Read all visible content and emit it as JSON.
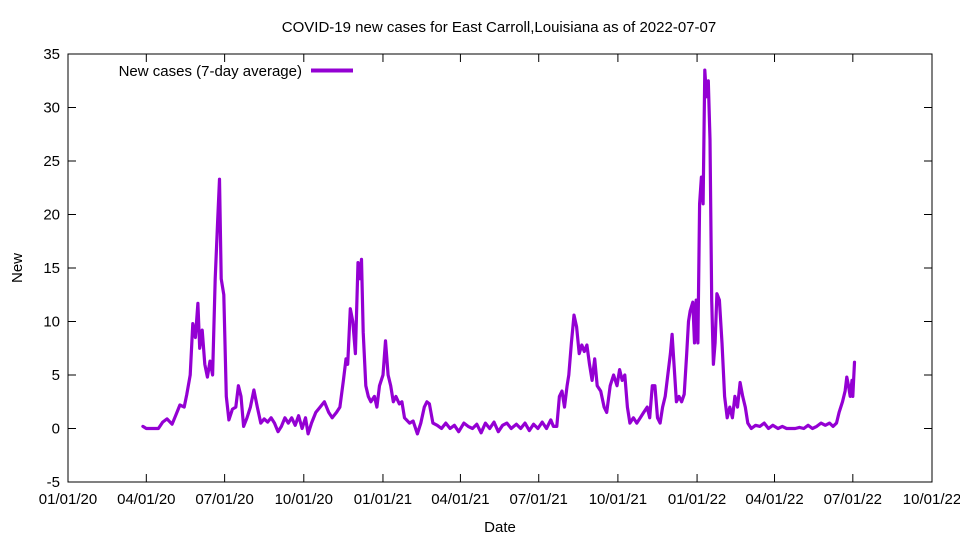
{
  "chart_data": {
    "type": "line",
    "title": "COVID-19 new cases for East Carroll,Louisiana as of 2022-07-07",
    "xlabel": "Date",
    "ylabel": "New",
    "x_range": [
      "2020-01-01",
      "2022-10-01"
    ],
    "ylim": [
      -5,
      35
    ],
    "y_ticks": [
      -5,
      0,
      5,
      10,
      15,
      20,
      25,
      30,
      35
    ],
    "x_ticks": [
      {
        "date": "2020-01-01",
        "label": "01/01/20"
      },
      {
        "date": "2020-04-01",
        "label": "04/01/20"
      },
      {
        "date": "2020-07-01",
        "label": "07/01/20"
      },
      {
        "date": "2020-10-01",
        "label": "10/01/20"
      },
      {
        "date": "2021-01-01",
        "label": "01/01/21"
      },
      {
        "date": "2021-04-01",
        "label": "04/01/21"
      },
      {
        "date": "2021-07-01",
        "label": "07/01/21"
      },
      {
        "date": "2021-10-01",
        "label": "10/01/21"
      },
      {
        "date": "2022-01-01",
        "label": "01/01/22"
      },
      {
        "date": "2022-04-01",
        "label": "04/01/22"
      },
      {
        "date": "2022-07-01",
        "label": "07/01/22"
      },
      {
        "date": "2022-10-01",
        "label": "10/01/22"
      }
    ],
    "legend_position": "top-left",
    "series": [
      {
        "name": "New cases (7-day average)",
        "color": "#9400d3",
        "points": [
          [
            "2020-03-28",
            0.2
          ],
          [
            "2020-04-01",
            0.0
          ],
          [
            "2020-04-15",
            0.0
          ],
          [
            "2020-04-20",
            0.6
          ],
          [
            "2020-04-25",
            0.9
          ],
          [
            "2020-05-01",
            0.4
          ],
          [
            "2020-05-05",
            1.2
          ],
          [
            "2020-05-10",
            2.2
          ],
          [
            "2020-05-15",
            2.0
          ],
          [
            "2020-05-18",
            3.2
          ],
          [
            "2020-05-22",
            5.0
          ],
          [
            "2020-05-25",
            9.8
          ],
          [
            "2020-05-28",
            8.5
          ],
          [
            "2020-05-31",
            11.7
          ],
          [
            "2020-06-02",
            7.5
          ],
          [
            "2020-06-05",
            9.2
          ],
          [
            "2020-06-08",
            6.0
          ],
          [
            "2020-06-11",
            4.8
          ],
          [
            "2020-06-14",
            6.3
          ],
          [
            "2020-06-17",
            5.0
          ],
          [
            "2020-06-20",
            14.0
          ],
          [
            "2020-06-23",
            19.5
          ],
          [
            "2020-06-25",
            23.3
          ],
          [
            "2020-06-27",
            14.0
          ],
          [
            "2020-06-30",
            12.5
          ],
          [
            "2020-07-03",
            3.0
          ],
          [
            "2020-07-06",
            0.8
          ],
          [
            "2020-07-10",
            1.8
          ],
          [
            "2020-07-14",
            2.0
          ],
          [
            "2020-07-17",
            4.0
          ],
          [
            "2020-07-20",
            3.0
          ],
          [
            "2020-07-23",
            0.2
          ],
          [
            "2020-07-27",
            1.0
          ],
          [
            "2020-07-31",
            2.0
          ],
          [
            "2020-08-04",
            3.6
          ],
          [
            "2020-08-08",
            2.0
          ],
          [
            "2020-08-12",
            0.5
          ],
          [
            "2020-08-16",
            0.9
          ],
          [
            "2020-08-20",
            0.6
          ],
          [
            "2020-08-24",
            1.0
          ],
          [
            "2020-08-28",
            0.5
          ],
          [
            "2020-09-01",
            -0.3
          ],
          [
            "2020-09-05",
            0.2
          ],
          [
            "2020-09-09",
            1.0
          ],
          [
            "2020-09-13",
            0.5
          ],
          [
            "2020-09-17",
            1.0
          ],
          [
            "2020-09-21",
            0.3
          ],
          [
            "2020-09-25",
            1.2
          ],
          [
            "2020-09-29",
            0.0
          ],
          [
            "2020-10-03",
            1.0
          ],
          [
            "2020-10-06",
            -0.5
          ],
          [
            "2020-10-10",
            0.5
          ],
          [
            "2020-10-15",
            1.5
          ],
          [
            "2020-10-20",
            2.0
          ],
          [
            "2020-10-25",
            2.5
          ],
          [
            "2020-10-30",
            1.5
          ],
          [
            "2020-11-03",
            1.0
          ],
          [
            "2020-11-08",
            1.5
          ],
          [
            "2020-11-12",
            2.0
          ],
          [
            "2020-11-16",
            4.5
          ],
          [
            "2020-11-19",
            6.5
          ],
          [
            "2020-11-21",
            6.0
          ],
          [
            "2020-11-24",
            11.2
          ],
          [
            "2020-11-27",
            10.0
          ],
          [
            "2020-11-30",
            7.0
          ],
          [
            "2020-12-03",
            15.5
          ],
          [
            "2020-12-05",
            14.0
          ],
          [
            "2020-12-07",
            15.8
          ],
          [
            "2020-12-09",
            9.0
          ],
          [
            "2020-12-12",
            4.0
          ],
          [
            "2020-12-15",
            3.0
          ],
          [
            "2020-12-18",
            2.5
          ],
          [
            "2020-12-22",
            3.0
          ],
          [
            "2020-12-25",
            2.0
          ],
          [
            "2020-12-28",
            4.0
          ],
          [
            "2021-01-01",
            5.0
          ],
          [
            "2021-01-04",
            8.2
          ],
          [
            "2021-01-07",
            5.0
          ],
          [
            "2021-01-10",
            4.0
          ],
          [
            "2021-01-13",
            2.5
          ],
          [
            "2021-01-16",
            3.0
          ],
          [
            "2021-01-20",
            2.3
          ],
          [
            "2021-01-23",
            2.5
          ],
          [
            "2021-01-26",
            1.0
          ],
          [
            "2021-02-01",
            0.5
          ],
          [
            "2021-02-05",
            0.7
          ],
          [
            "2021-02-10",
            -0.5
          ],
          [
            "2021-02-14",
            0.5
          ],
          [
            "2021-02-18",
            2.0
          ],
          [
            "2021-02-21",
            2.5
          ],
          [
            "2021-02-24",
            2.3
          ],
          [
            "2021-02-28",
            0.5
          ],
          [
            "2021-03-05",
            0.3
          ],
          [
            "2021-03-10",
            0.0
          ],
          [
            "2021-03-15",
            0.5
          ],
          [
            "2021-03-20",
            0.0
          ],
          [
            "2021-03-25",
            0.3
          ],
          [
            "2021-03-30",
            -0.3
          ],
          [
            "2021-04-05",
            0.5
          ],
          [
            "2021-04-10",
            0.2
          ],
          [
            "2021-04-15",
            0.0
          ],
          [
            "2021-04-20",
            0.4
          ],
          [
            "2021-04-25",
            -0.4
          ],
          [
            "2021-04-30",
            0.5
          ],
          [
            "2021-05-05",
            0.0
          ],
          [
            "2021-05-10",
            0.6
          ],
          [
            "2021-05-15",
            -0.3
          ],
          [
            "2021-05-20",
            0.3
          ],
          [
            "2021-05-25",
            0.5
          ],
          [
            "2021-05-30",
            0.0
          ],
          [
            "2021-06-05",
            0.4
          ],
          [
            "2021-06-10",
            0.0
          ],
          [
            "2021-06-15",
            0.5
          ],
          [
            "2021-06-20",
            -0.2
          ],
          [
            "2021-06-25",
            0.4
          ],
          [
            "2021-06-30",
            0.0
          ],
          [
            "2021-07-05",
            0.6
          ],
          [
            "2021-07-10",
            0.0
          ],
          [
            "2021-07-15",
            0.8
          ],
          [
            "2021-07-18",
            0.2
          ],
          [
            "2021-07-22",
            0.2
          ],
          [
            "2021-07-25",
            3.0
          ],
          [
            "2021-07-28",
            3.5
          ],
          [
            "2021-07-31",
            2.0
          ],
          [
            "2021-08-03",
            4.0
          ],
          [
            "2021-08-05",
            5.0
          ],
          [
            "2021-08-08",
            8.0
          ],
          [
            "2021-08-11",
            10.6
          ],
          [
            "2021-08-14",
            9.5
          ],
          [
            "2021-08-17",
            7.0
          ],
          [
            "2021-08-20",
            7.8
          ],
          [
            "2021-08-23",
            7.2
          ],
          [
            "2021-08-26",
            7.8
          ],
          [
            "2021-08-29",
            6.0
          ],
          [
            "2021-09-01",
            4.5
          ],
          [
            "2021-09-04",
            6.5
          ],
          [
            "2021-09-07",
            4.0
          ],
          [
            "2021-09-11",
            3.5
          ],
          [
            "2021-09-15",
            2.0
          ],
          [
            "2021-09-18",
            1.5
          ],
          [
            "2021-09-22",
            4.0
          ],
          [
            "2021-09-26",
            5.0
          ],
          [
            "2021-09-30",
            4.0
          ],
          [
            "2021-10-03",
            5.5
          ],
          [
            "2021-10-06",
            4.5
          ],
          [
            "2021-10-09",
            5.0
          ],
          [
            "2021-10-12",
            2.0
          ],
          [
            "2021-10-15",
            0.5
          ],
          [
            "2021-10-19",
            1.0
          ],
          [
            "2021-10-23",
            0.5
          ],
          [
            "2021-10-27",
            1.0
          ],
          [
            "2021-10-31",
            1.5
          ],
          [
            "2021-11-04",
            2.0
          ],
          [
            "2021-11-07",
            1.0
          ],
          [
            "2021-11-10",
            4.0
          ],
          [
            "2021-11-13",
            4.0
          ],
          [
            "2021-11-16",
            1.0
          ],
          [
            "2021-11-19",
            0.5
          ],
          [
            "2021-11-22",
            2.0
          ],
          [
            "2021-11-25",
            3.0
          ],
          [
            "2021-11-28",
            5.0
          ],
          [
            "2021-12-01",
            7.0
          ],
          [
            "2021-12-03",
            8.8
          ],
          [
            "2021-12-06",
            5.0
          ],
          [
            "2021-12-08",
            2.5
          ],
          [
            "2021-12-11",
            3.0
          ],
          [
            "2021-12-14",
            2.5
          ],
          [
            "2021-12-17",
            3.2
          ],
          [
            "2021-12-20",
            7.0
          ],
          [
            "2021-12-22",
            10.0
          ],
          [
            "2021-12-24",
            11.0
          ],
          [
            "2021-12-27",
            11.8
          ],
          [
            "2021-12-29",
            8.0
          ],
          [
            "2021-12-31",
            12.0
          ],
          [
            "2022-01-02",
            8.0
          ],
          [
            "2022-01-04",
            21.0
          ],
          [
            "2022-01-06",
            23.5
          ],
          [
            "2022-01-08",
            21.0
          ],
          [
            "2022-01-10",
            33.5
          ],
          [
            "2022-01-12",
            31.0
          ],
          [
            "2022-01-14",
            32.5
          ],
          [
            "2022-01-16",
            27.0
          ],
          [
            "2022-01-18",
            12.0
          ],
          [
            "2022-01-20",
            6.0
          ],
          [
            "2022-01-22",
            8.0
          ],
          [
            "2022-01-24",
            12.6
          ],
          [
            "2022-01-27",
            12.0
          ],
          [
            "2022-01-30",
            8.0
          ],
          [
            "2022-02-02",
            3.0
          ],
          [
            "2022-02-05",
            1.0
          ],
          [
            "2022-02-08",
            2.0
          ],
          [
            "2022-02-11",
            1.0
          ],
          [
            "2022-02-14",
            3.0
          ],
          [
            "2022-02-17",
            2.0
          ],
          [
            "2022-02-20",
            4.3
          ],
          [
            "2022-02-23",
            3.0
          ],
          [
            "2022-02-26",
            2.0
          ],
          [
            "2022-03-01",
            0.5
          ],
          [
            "2022-03-05",
            0.0
          ],
          [
            "2022-03-10",
            0.3
          ],
          [
            "2022-03-15",
            0.2
          ],
          [
            "2022-03-20",
            0.5
          ],
          [
            "2022-03-25",
            0.0
          ],
          [
            "2022-03-30",
            0.3
          ],
          [
            "2022-04-05",
            0.0
          ],
          [
            "2022-04-10",
            0.2
          ],
          [
            "2022-04-15",
            0.0
          ],
          [
            "2022-04-20",
            0.0
          ],
          [
            "2022-04-25",
            0.0
          ],
          [
            "2022-04-30",
            0.1
          ],
          [
            "2022-05-05",
            0.0
          ],
          [
            "2022-05-10",
            0.3
          ],
          [
            "2022-05-15",
            0.0
          ],
          [
            "2022-05-20",
            0.2
          ],
          [
            "2022-05-25",
            0.5
          ],
          [
            "2022-05-30",
            0.3
          ],
          [
            "2022-06-04",
            0.5
          ],
          [
            "2022-06-08",
            0.2
          ],
          [
            "2022-06-12",
            0.5
          ],
          [
            "2022-06-15",
            1.5
          ],
          [
            "2022-06-19",
            2.5
          ],
          [
            "2022-06-22",
            3.5
          ],
          [
            "2022-06-24",
            4.8
          ],
          [
            "2022-06-26",
            4.0
          ],
          [
            "2022-06-28",
            3.0
          ],
          [
            "2022-06-30",
            4.5
          ],
          [
            "2022-07-01",
            3.0
          ],
          [
            "2022-07-03",
            6.2
          ]
        ]
      }
    ]
  }
}
